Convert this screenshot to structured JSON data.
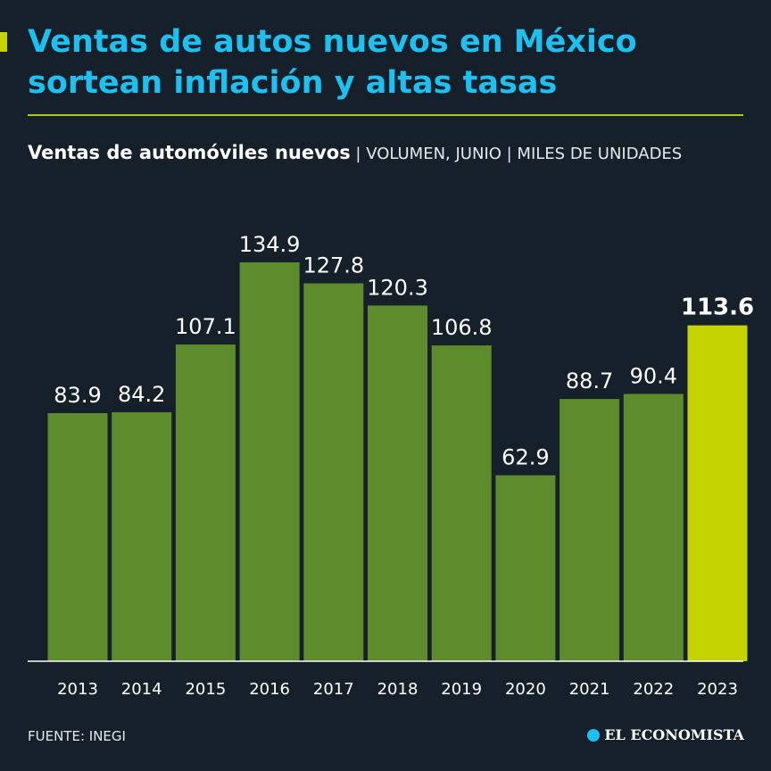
{
  "headline": "Ventas de autos nuevos en México sortean inflación y altas tasas",
  "subtitle": {
    "lead": "Ventas de automóviles nuevos",
    "qualifier": " | VOLUMEN, JUNIO | MILES DE UNIDADES"
  },
  "source": "FUENTE: INEGI",
  "logo": "EL ECONOMISTA",
  "colors": {
    "background": "#16202b",
    "headline": "#1fc0f0",
    "bar": "#5e8b2c",
    "highlight_bar": "#c5d300",
    "rule": "#b9c412"
  },
  "chart_data": {
    "type": "bar",
    "categories": [
      "2013",
      "2014",
      "2015",
      "2016",
      "2017",
      "2018",
      "2019",
      "2020",
      "2021",
      "2022",
      "2023"
    ],
    "values": [
      83.9,
      84.2,
      107.1,
      134.9,
      127.8,
      120.3,
      106.8,
      62.9,
      88.7,
      90.4,
      113.6
    ],
    "labels": [
      "83.9",
      "84.2",
      "107.1",
      "134.9",
      "127.8",
      "120.3",
      "106.8",
      "62.9",
      "88.7",
      "90.4",
      "113.6"
    ],
    "highlight": "2023",
    "title": "Ventas de automóviles nuevos",
    "xlabel": "",
    "ylabel": "",
    "ylim": [
      0,
      134.9
    ],
    "grid": false,
    "legend": "none"
  }
}
